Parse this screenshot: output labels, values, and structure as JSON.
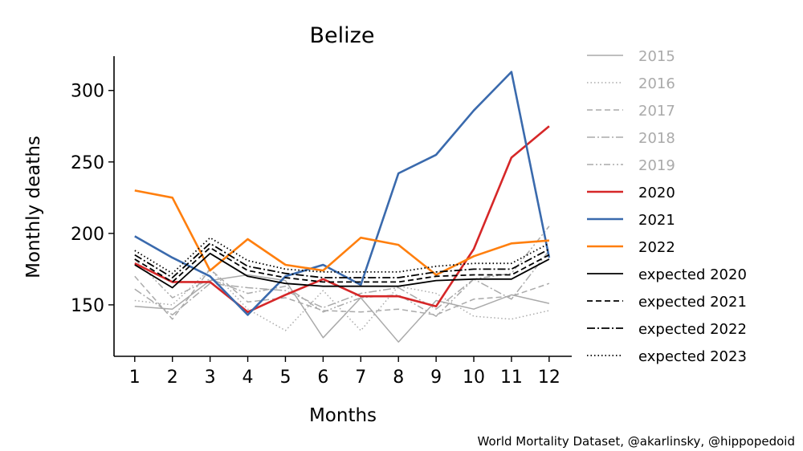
{
  "chart_data": {
    "type": "line",
    "title": "Belize",
    "xlabel": "Months",
    "ylabel": "Monthly deaths",
    "x": [
      1,
      2,
      3,
      4,
      5,
      6,
      7,
      8,
      9,
      10,
      11,
      12
    ],
    "xticks": [
      "1",
      "2",
      "3",
      "4",
      "5",
      "6",
      "7",
      "8",
      "9",
      "10",
      "11",
      "12"
    ],
    "xlim": [
      0.45,
      12.6
    ],
    "yticks": [
      150,
      200,
      250,
      300
    ],
    "ylim": [
      114,
      324
    ],
    "grid": false,
    "legend_position": "right",
    "series": [
      {
        "name": "2015",
        "color": "#aaaaaa",
        "dash": "solid",
        "width": 1.5,
        "label_color": "#aaaaaa",
        "values": [
          149,
          147,
          167,
          171,
          167,
          127,
          155,
          124,
          153,
          147,
          157,
          151
        ]
      },
      {
        "name": "2016",
        "color": "#aaaaaa",
        "dash": "dotted",
        "width": 1.5,
        "label_color": "#aaaaaa",
        "values": [
          153,
          150,
          175,
          147,
          132,
          160,
          132,
          163,
          158,
          142,
          140,
          146
        ]
      },
      {
        "name": "2017",
        "color": "#aaaaaa",
        "dash": "dashed",
        "width": 1.5,
        "label_color": "#aaaaaa",
        "values": [
          170,
          140,
          175,
          152,
          155,
          146,
          145,
          147,
          143,
          154,
          156,
          165
        ]
      },
      {
        "name": "2018",
        "color": "#aaaaaa",
        "dash": "dashdot",
        "width": 1.5,
        "label_color": "#aaaaaa",
        "values": [
          161,
          143,
          165,
          162,
          160,
          148,
          158,
          162,
          147,
          168,
          154,
          188
        ]
      },
      {
        "name": "2019",
        "color": "#aaaaaa",
        "dash": "dashdotdot",
        "width": 1.5,
        "label_color": "#aaaaaa",
        "values": [
          182,
          155,
          168,
          158,
          163,
          145,
          155,
          157,
          142,
          168,
          172,
          205
        ]
      },
      {
        "name": "2020",
        "color": "#d62728",
        "dash": "solid",
        "width": 2.6,
        "label_color": "#000000",
        "values": [
          179,
          166,
          166,
          145,
          157,
          168,
          156,
          156,
          149,
          189,
          253,
          275
        ]
      },
      {
        "name": "2021",
        "color": "#3a6aad",
        "dash": "solid",
        "width": 2.6,
        "label_color": "#000000",
        "values": [
          198,
          183,
          170,
          143,
          170,
          178,
          164,
          242,
          255,
          286,
          313,
          183
        ]
      },
      {
        "name": "2022",
        "color": "#ff7f0e",
        "dash": "solid",
        "width": 2.6,
        "label_color": "#000000",
        "values": [
          230,
          225,
          174,
          196,
          178,
          174,
          197,
          192,
          171,
          184,
          193,
          195
        ]
      },
      {
        "name": "expected 2020",
        "color": "#000000",
        "dash": "solid",
        "width": 1.8,
        "label_color": "#000000",
        "values": [
          178,
          162,
          186,
          170,
          165,
          163,
          163,
          163,
          167,
          168,
          168,
          182
        ]
      },
      {
        "name": "expected 2021",
        "color": "#000000",
        "dash": "dashed",
        "width": 1.8,
        "label_color": "#000000",
        "values": [
          182,
          166,
          190,
          174,
          169,
          166,
          166,
          166,
          170,
          171,
          171,
          185
        ]
      },
      {
        "name": "expected 2022",
        "color": "#000000",
        "dash": "dashdot",
        "width": 1.8,
        "label_color": "#000000",
        "values": [
          185,
          169,
          193,
          177,
          172,
          169,
          169,
          169,
          173,
          175,
          175,
          189
        ]
      },
      {
        "name": "expected 2023",
        "color": "#000000",
        "dash": "dotted",
        "width": 1.8,
        "label_color": "#000000",
        "values": [
          188,
          172,
          197,
          181,
          175,
          173,
          173,
          173,
          177,
          179,
          179,
          193
        ]
      }
    ]
  },
  "credit": "World Mortality Dataset, @akarlinsky, @hippopedoid"
}
